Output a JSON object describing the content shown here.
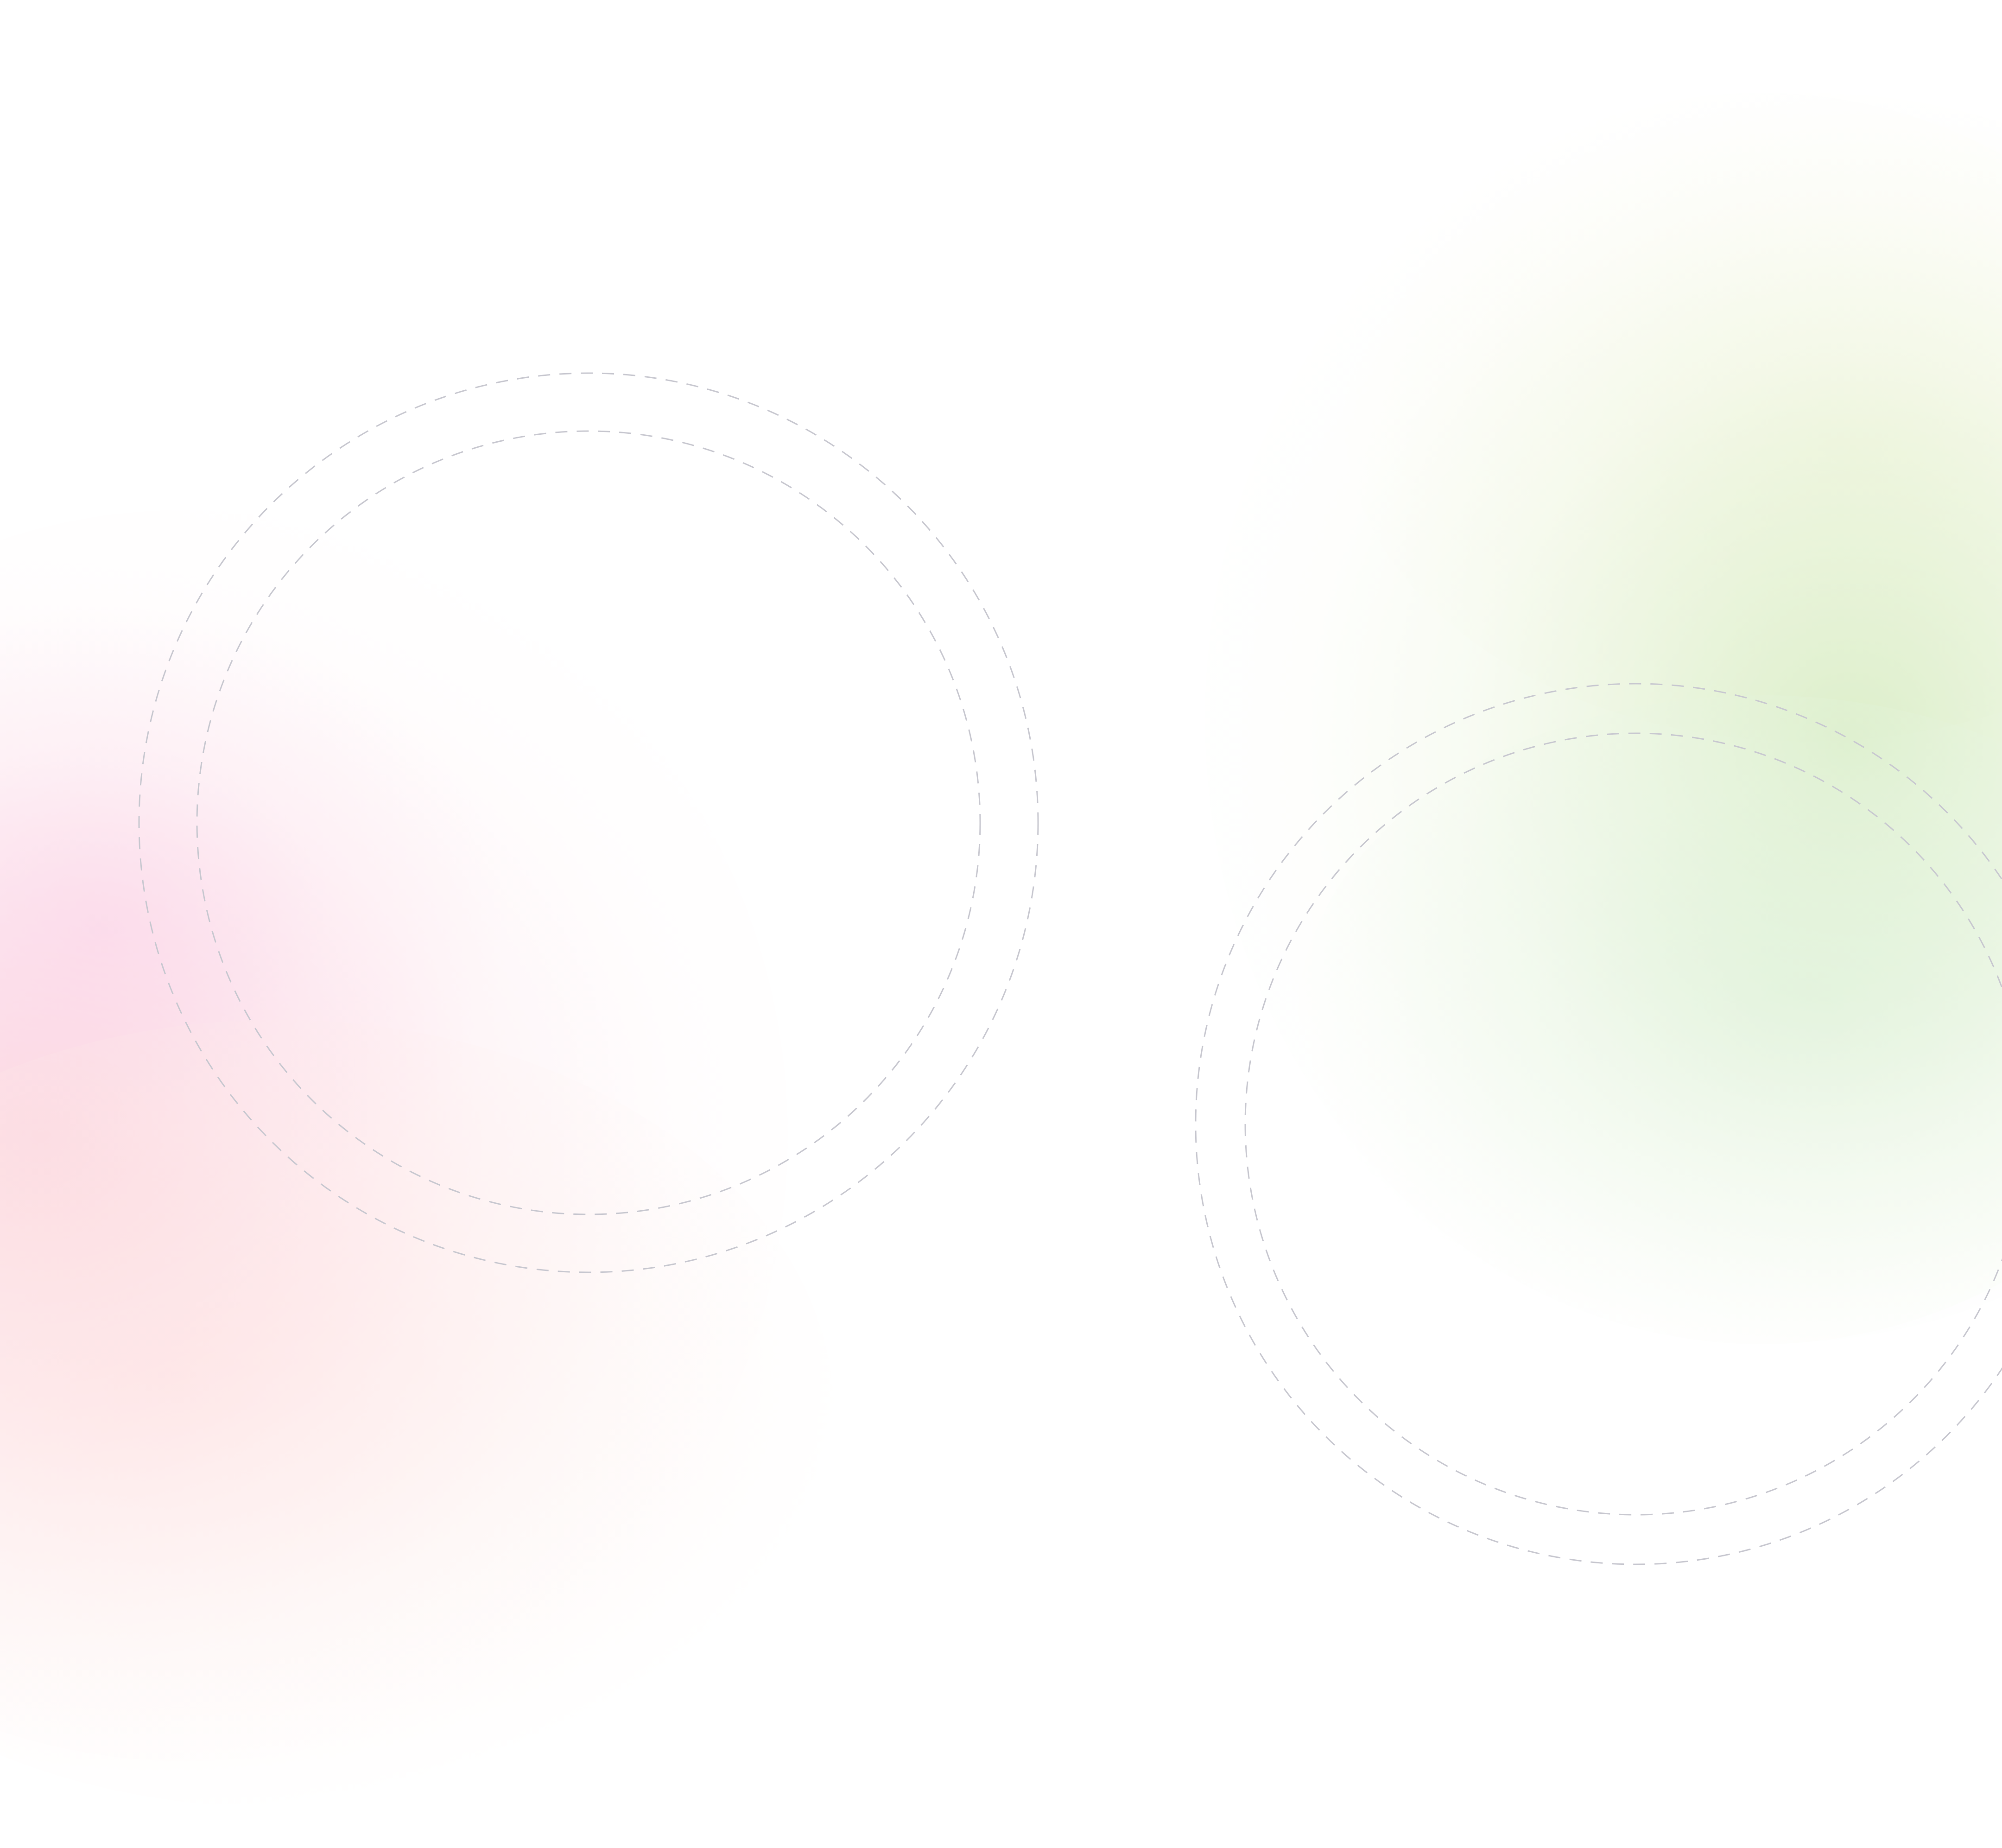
{
  "background": {
    "base_color": "#ffffff",
    "blob_colors": {
      "pink": "#fccdd8",
      "peach": "#fde2e0",
      "green": "#d4ebbe",
      "yellow": "#f0f4d7",
      "mint": "#daf0d7"
    }
  },
  "rings": {
    "stroke_color": "#c8c8d0",
    "groups": [
      {
        "name": "left-ring-group",
        "ring_count": 2
      },
      {
        "name": "right-ring-group",
        "ring_count": 2
      }
    ]
  }
}
